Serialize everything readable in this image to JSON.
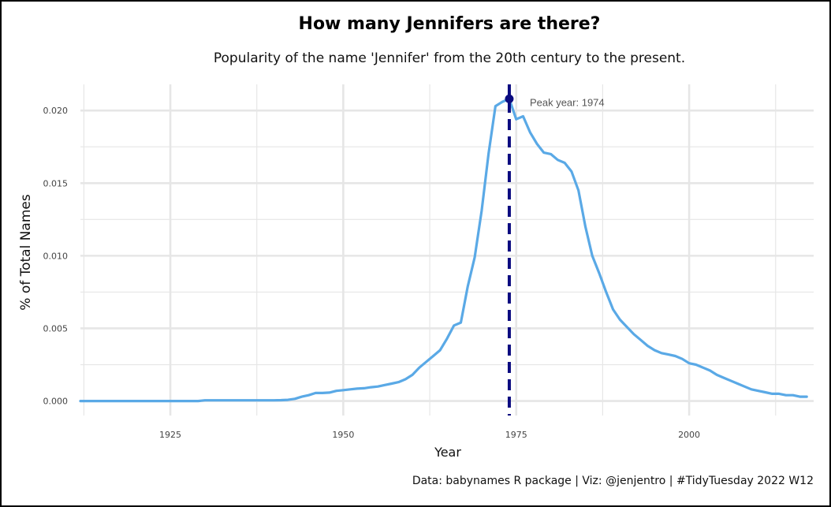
{
  "title": "How many Jennifers are there?",
  "subtitle": "Popularity of the name 'Jennifer' from the 20th century to the present.",
  "caption": "Data: babynames R package | Viz: @jenjentro | #TidyTuesday 2022 W12",
  "colors": {
    "line": "#5aa9e6",
    "peak": "#0b0b80",
    "grid": "#e6e6e6"
  },
  "chart_data": {
    "type": "line",
    "title": "How many Jennifers are there?",
    "subtitle": "Popularity of the name 'Jennifer' from the 20th century to the present.",
    "xlabel": "Year",
    "ylabel": "% of Total Names",
    "xlim": [
      1912,
      2018
    ],
    "ylim": [
      -0.001,
      0.0218
    ],
    "xticks": [
      1925,
      1950,
      1975,
      2000
    ],
    "yticks": [
      0.0,
      0.005,
      0.01,
      0.015,
      0.02
    ],
    "ytick_labels": [
      "0.000",
      "0.005",
      "0.010",
      "0.015",
      "0.020"
    ],
    "grid": true,
    "legend": "none",
    "series": [
      {
        "x": [
          1912,
          1915,
          1920,
          1925,
          1929,
          1930,
          1935,
          1940,
          1941,
          1942,
          1943,
          1944,
          1945,
          1946,
          1947,
          1948,
          1949,
          1950,
          1951,
          1952,
          1953,
          1954,
          1955,
          1956,
          1957,
          1958,
          1959,
          1960,
          1961,
          1962,
          1963,
          1964,
          1965,
          1966,
          1967,
          1968,
          1969,
          1970,
          1971,
          1972,
          1973,
          1974,
          1975,
          1976,
          1977,
          1978,
          1979,
          1980,
          1981,
          1982,
          1983,
          1984,
          1985,
          1986,
          1987,
          1988,
          1989,
          1990,
          1991,
          1992,
          1993,
          1994,
          1995,
          1996,
          1997,
          1998,
          1999,
          2000,
          2001,
          2002,
          2003,
          2004,
          2005,
          2006,
          2007,
          2008,
          2009,
          2010,
          2011,
          2012,
          2013,
          2014,
          2015,
          2016,
          2017
        ],
        "y": [
          0.0,
          0.0,
          0.0,
          0.0,
          0.0,
          5e-05,
          5e-05,
          5e-05,
          6e-05,
          8e-05,
          0.00015,
          0.0003,
          0.0004,
          0.00055,
          0.00055,
          0.00058,
          0.0007,
          0.00075,
          0.0008,
          0.00085,
          0.00088,
          0.00095,
          0.001,
          0.0011,
          0.0012,
          0.0013,
          0.0015,
          0.0018,
          0.0023,
          0.0027,
          0.0031,
          0.0035,
          0.0043,
          0.0052,
          0.0054,
          0.0079,
          0.0099,
          0.0131,
          0.017,
          0.0203,
          0.0206,
          0.0208,
          0.0194,
          0.0196,
          0.0185,
          0.0177,
          0.0171,
          0.017,
          0.0166,
          0.0164,
          0.0158,
          0.0145,
          0.012,
          0.01,
          0.0088,
          0.0075,
          0.0063,
          0.0056,
          0.0051,
          0.0046,
          0.0042,
          0.0038,
          0.0035,
          0.0033,
          0.0032,
          0.0031,
          0.0029,
          0.0026,
          0.0025,
          0.0023,
          0.0021,
          0.0018,
          0.0016,
          0.0014,
          0.0012,
          0.001,
          0.0008,
          0.0007,
          0.0006,
          0.0005,
          0.0005,
          0.0004,
          0.0004,
          0.0003,
          0.0003
        ]
      }
    ],
    "peak": {
      "year": 1974,
      "value": 0.0208,
      "label": "Peak year: 1974"
    }
  }
}
